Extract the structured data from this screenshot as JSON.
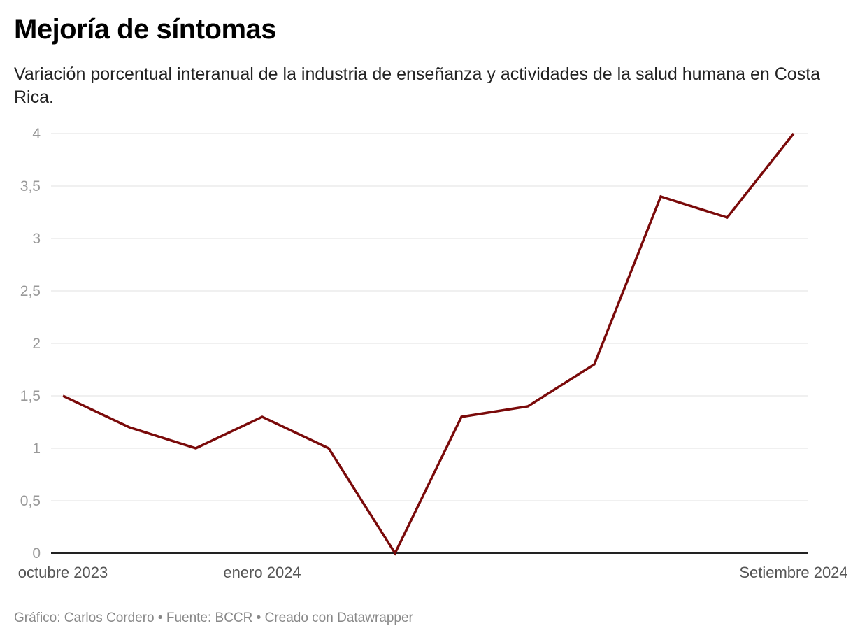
{
  "header": {
    "title": "Mejoría de síntomas",
    "subtitle": "Variación porcentual interanual de la industria de enseñanza y actividades de la salud humana en Costa Rica."
  },
  "footer": {
    "credit": "Gráfico: Carlos Cordero • Fuente: BCCR • Creado con Datawrapper"
  },
  "chart_data": {
    "type": "line",
    "title": "Mejoría de síntomas",
    "subtitle": "Variación porcentual interanual de la industria de enseñanza y actividades de la salud humana en Costa Rica.",
    "x": [
      "2023-10",
      "2023-11",
      "2023-12",
      "2024-01",
      "2024-02",
      "2024-03",
      "2024-04",
      "2024-05",
      "2024-06",
      "2024-07",
      "2024-08",
      "2024-09"
    ],
    "series": [
      {
        "values": [
          1.5,
          1.2,
          1.0,
          1.3,
          1.0,
          0,
          1.3,
          1.4,
          1.8,
          3.4,
          3.2,
          4.0
        ],
        "color": "#7a0a0a"
      }
    ],
    "xticks": [
      {
        "index": 0,
        "label": "octubre 2023"
      },
      {
        "index": 3,
        "label": "enero 2024"
      },
      {
        "index": 11,
        "label": "Setiembre 2024"
      }
    ],
    "yticks": [
      {
        "value": 0,
        "label": "0"
      },
      {
        "value": 0.5,
        "label": "0,5"
      },
      {
        "value": 1,
        "label": "1"
      },
      {
        "value": 1.5,
        "label": "1,5"
      },
      {
        "value": 2,
        "label": "2"
      },
      {
        "value": 2.5,
        "label": "2,5"
      },
      {
        "value": 3,
        "label": "3"
      },
      {
        "value": 3.5,
        "label": "3,5"
      },
      {
        "value": 4,
        "label": "4"
      }
    ],
    "ylim": [
      0,
      4
    ],
    "grid": true,
    "legend": "none"
  }
}
